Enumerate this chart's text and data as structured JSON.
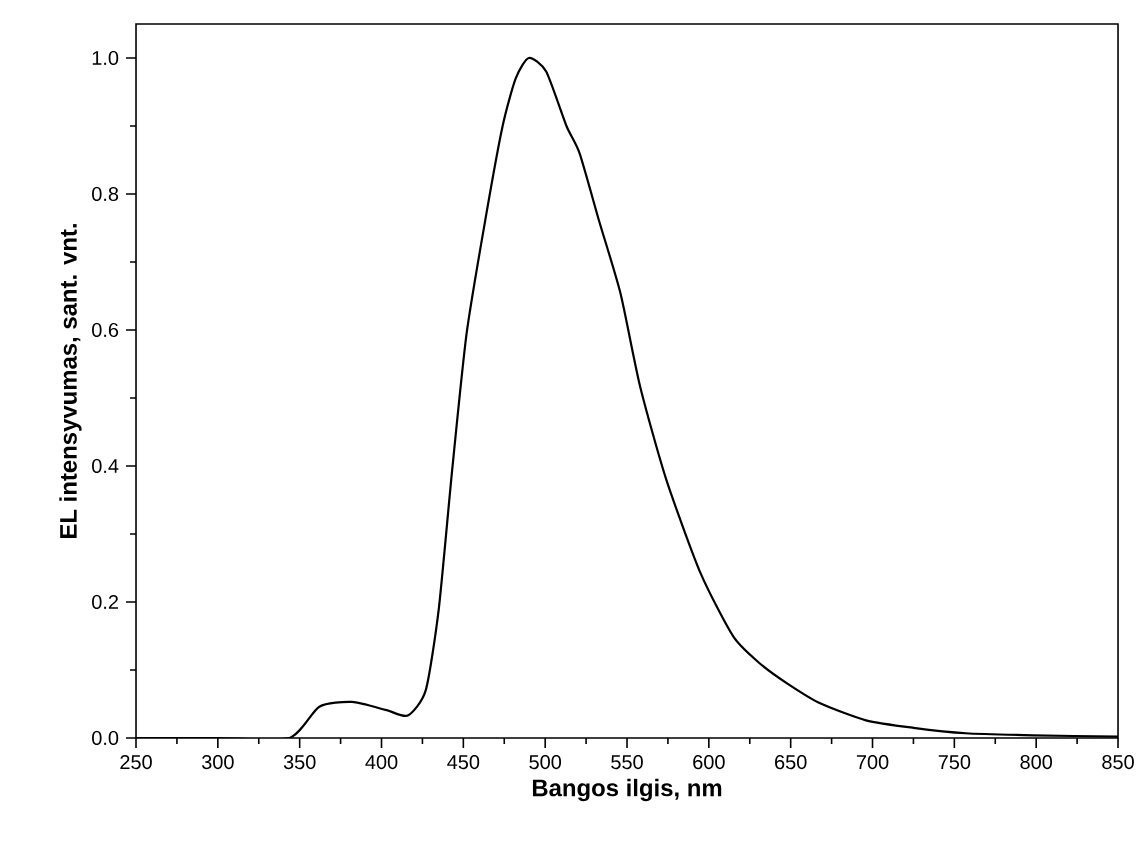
{
  "chart_data": {
    "type": "line",
    "xlabel": "Bangos ilgis, nm",
    "ylabel": "EL intensyvumas, sant. vnt.",
    "x": [
      250,
      300,
      343.7,
      362,
      382,
      403,
      416,
      427,
      435,
      443,
      452,
      464,
      474,
      482,
      490,
      500.6,
      513,
      521,
      533,
      546,
      558,
      574,
      595,
      615,
      631,
      648,
      668,
      696,
      725,
      757,
      798,
      850
    ],
    "series": [
      {
        "color": "#000000",
        "values": [
          0,
          0,
          0,
          0.046,
          0.053,
          0.041,
          0.033,
          0.07,
          0.19,
          0.39,
          0.595,
          0.77,
          0.9,
          0.97,
          1.0,
          0.98,
          0.9,
          0.86,
          0.76,
          0.654,
          0.517,
          0.38,
          0.242,
          0.149,
          0.11,
          0.08,
          0.051,
          0.026,
          0.015,
          0.007,
          0.004,
          0.002
        ]
      }
    ],
    "xlim": [
      250,
      850
    ],
    "ylim": [
      0,
      1.05
    ],
    "xticks": [
      250,
      300,
      350,
      400,
      450,
      500,
      550,
      600,
      650,
      700,
      750,
      800,
      850
    ],
    "yticks": [
      {
        "value": 0,
        "label": "0.0"
      },
      {
        "value": 0.2,
        "label": "0.2"
      },
      {
        "value": 0.4,
        "label": "0.4"
      },
      {
        "value": 0.6,
        "label": "0.6"
      },
      {
        "value": 0.8,
        "label": "0.8"
      },
      {
        "value": 1.0,
        "label": "1.0"
      }
    ],
    "grid": false,
    "marker": "none",
    "line_style": "solid"
  }
}
